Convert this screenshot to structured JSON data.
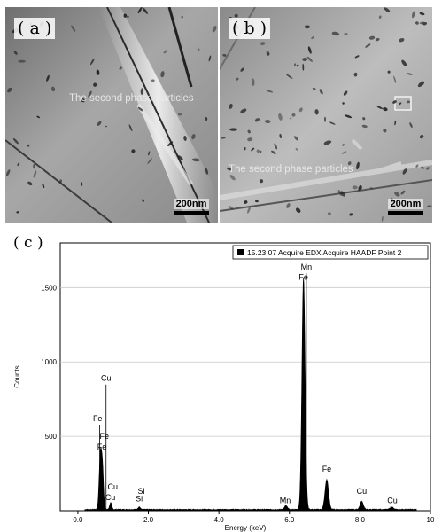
{
  "panels": {
    "a": {
      "label": "( a )",
      "annotation": "The second phase particles",
      "scale": "200nm"
    },
    "b": {
      "label": "( b )",
      "annotation": "The second phase particles",
      "scale": "200nm"
    }
  },
  "chart_data": {
    "panel_label": "( c )",
    "type": "line",
    "xlabel": "Energy (keV)",
    "ylabel": "Counts",
    "xlim": [
      -0.5,
      10
    ],
    "ylim": [
      0,
      1800
    ],
    "x_ticks": [
      "0.0",
      "2.0",
      "4.0",
      "6.0",
      "8.0",
      "10"
    ],
    "x_tick_values": [
      0,
      2,
      4,
      6,
      8,
      10
    ],
    "y_ticks": [
      "500",
      "1000",
      "1500"
    ],
    "y_tick_values": [
      500,
      1000,
      1500
    ],
    "legend": "15.23.07 Acquire EDX Acquire HAADF Point 2",
    "legend_position": "top-right",
    "series_color": "#000000",
    "peaks": [
      {
        "x": 0.64,
        "y": 370,
        "w": 0.035
      },
      {
        "x": 0.7,
        "y": 240,
        "w": 0.03
      },
      {
        "x": 0.93,
        "y": 45,
        "w": 0.03
      },
      {
        "x": 1.74,
        "y": 18,
        "w": 0.03
      },
      {
        "x": 5.9,
        "y": 25,
        "w": 0.04
      },
      {
        "x": 6.4,
        "y": 1560,
        "w": 0.045
      },
      {
        "x": 7.06,
        "y": 200,
        "w": 0.05
      },
      {
        "x": 8.05,
        "y": 55,
        "w": 0.045
      },
      {
        "x": 8.9,
        "y": 18,
        "w": 0.04
      }
    ],
    "peak_labels": [
      {
        "text": "Cu",
        "x": 0.8,
        "y": 860,
        "line_to": 0.8
      },
      {
        "text": "Fe",
        "x": 0.56,
        "y": 590,
        "line_to": 0.62
      },
      {
        "text": "Fe",
        "x": 0.75,
        "y": 470
      },
      {
        "text": "Fe",
        "x": 0.68,
        "y": 400
      },
      {
        "text": "Cu",
        "x": 0.99,
        "y": 130
      },
      {
        "text": "Cu",
        "x": 0.92,
        "y": 60
      },
      {
        "text": "Si",
        "x": 1.8,
        "y": 100
      },
      {
        "text": "Si",
        "x": 1.74,
        "y": 50
      },
      {
        "text": "Mn",
        "x": 5.88,
        "y": 40
      },
      {
        "text": "Mn",
        "x": 6.48,
        "y": 1610,
        "line_to": 6.48
      },
      {
        "text": "Fe",
        "x": 6.4,
        "y": 1540
      },
      {
        "text": "Fe",
        "x": 7.06,
        "y": 250
      },
      {
        "text": "Cu",
        "x": 8.05,
        "y": 100
      },
      {
        "text": "Cu",
        "x": 8.92,
        "y": 40
      }
    ]
  }
}
